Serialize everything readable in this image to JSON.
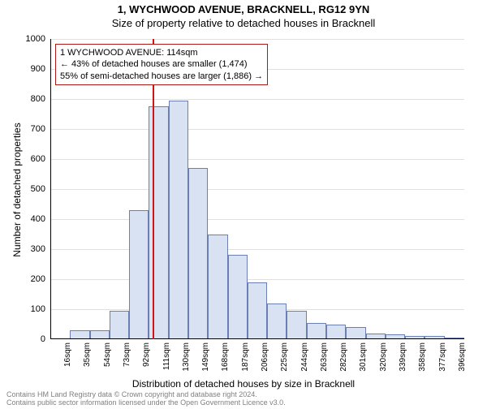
{
  "title": "1, WYCHWOOD AVENUE, BRACKNELL, RG12 9YN",
  "subtitle": "Size of property relative to detached houses in Bracknell",
  "chart": {
    "type": "histogram",
    "y_axis": {
      "title": "Number of detached properties",
      "min": 0,
      "max": 1000,
      "tick_step": 100,
      "title_fontsize": 12,
      "tick_fontsize": 11
    },
    "x_axis": {
      "title": "Distribution of detached houses by size in Bracknell",
      "ticks": [
        "16sqm",
        "35sqm",
        "54sqm",
        "73sqm",
        "92sqm",
        "111sqm",
        "130sqm",
        "149sqm",
        "168sqm",
        "187sqm",
        "206sqm",
        "225sqm",
        "244sqm",
        "263sqm",
        "282sqm",
        "301sqm",
        "320sqm",
        "339sqm",
        "358sqm",
        "377sqm",
        "396sqm"
      ],
      "title_fontsize": 12,
      "tick_fontsize": 10
    },
    "bars": {
      "values": [
        0,
        30,
        30,
        95,
        430,
        775,
        795,
        570,
        350,
        280,
        190,
        120,
        95,
        55,
        50,
        40,
        20,
        15,
        10,
        10,
        5
      ],
      "fill_color": "#d9e2f3",
      "border_color": "#6b7fb3",
      "bar_width_ratio": 1.0
    },
    "marker": {
      "bin_index": 5.2,
      "color": "#d01414",
      "width": 2
    },
    "info_box": {
      "line1": "1 WYCHWOOD AVENUE: 114sqm",
      "line2": "← 43% of detached houses are smaller (1,474)",
      "line3": "55% of semi-detached houses are larger (1,886) →",
      "border_color": "#b01818",
      "fontsize": 11
    },
    "background_color": "#ffffff",
    "grid_color": "#e0e0e0",
    "axis_color": "#000000"
  },
  "footer": {
    "line1": "Contains HM Land Registry data © Crown copyright and database right 2024.",
    "line2": "Contains public sector information licensed under the Open Government Licence v3.0.",
    "color": "#808080",
    "fontsize": 9
  }
}
